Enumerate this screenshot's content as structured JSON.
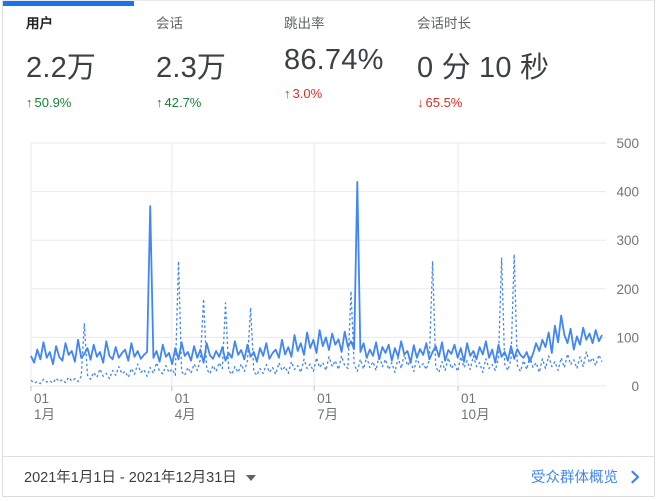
{
  "metrics": [
    {
      "label": "用户",
      "value": "2.2万",
      "arrow_glyph": "↑",
      "delta": "50.9%",
      "delta_color": "#188038",
      "active": true
    },
    {
      "label": "会话",
      "value": "2.3万",
      "arrow_glyph": "↑",
      "delta": "42.7%",
      "delta_color": "#188038",
      "active": false
    },
    {
      "label": "跳出率",
      "value": "86.74%",
      "arrow_glyph": "↑",
      "delta": "3.0%",
      "delta_color": "#d93025",
      "active": false
    },
    {
      "label": "会话时长",
      "value": "0 分 10 秒",
      "arrow_glyph": "↓",
      "delta": "65.5%",
      "delta_color": "#d93025",
      "active": false
    }
  ],
  "chart_data": {
    "type": "line",
    "title": "",
    "xlabel": "",
    "ylabel": "",
    "ylim": [
      0,
      500
    ],
    "y_ticks": [
      0,
      100,
      200,
      300,
      400,
      500
    ],
    "y_axis_side": "right",
    "grid": true,
    "legend": "none",
    "x_ticks": [
      {
        "frac": 0.0,
        "label_line1": "01",
        "label_line2": "1月"
      },
      {
        "frac": 0.2466,
        "label_line1": "01",
        "label_line2": "4月"
      },
      {
        "frac": 0.4959,
        "label_line1": "01",
        "label_line2": "7月"
      },
      {
        "frac": 0.7479,
        "label_line1": "01",
        "label_line2": "10月"
      }
    ],
    "series": [
      {
        "name": "previous-period",
        "style": "dashed",
        "color": "#4285f4",
        "values": [
          12,
          6,
          9,
          5,
          14,
          8,
          11,
          6,
          16,
          9,
          13,
          7,
          18,
          10,
          15,
          9,
          20,
          128,
          22,
          14,
          28,
          18,
          35,
          20,
          26,
          15,
          32,
          22,
          40,
          25,
          30,
          18,
          36,
          24,
          45,
          28,
          34,
          20,
          38,
          26,
          48,
          30,
          25,
          42,
          28,
          35,
          22,
          257,
          30,
          22,
          38,
          26,
          45,
          32,
          55,
          179,
          35,
          25,
          42,
          30,
          48,
          36,
          171,
          32,
          24,
          40,
          28,
          45,
          30,
          52,
          161,
          30,
          22,
          36,
          26,
          44,
          28,
          38,
          24,
          48,
          32,
          40,
          26,
          50,
          34,
          42,
          28,
          55,
          36,
          45,
          30,
          58,
          38,
          48,
          32,
          60,
          40,
          52,
          34,
          62,
          42,
          36,
          195,
          45,
          30,
          55,
          35,
          60,
          38,
          50,
          32,
          64,
          40,
          55,
          34,
          48,
          28,
          58,
          36,
          65,
          42,
          52,
          30,
          60,
          38,
          46,
          34,
          55,
          257,
          40,
          28,
          50,
          32,
          58,
          36,
          46,
          30,
          60,
          38,
          52,
          34,
          62,
          40,
          48,
          28,
          56,
          36,
          44,
          32,
          58,
          263,
          45,
          32,
          55,
          271,
          42,
          30,
          52,
          34,
          60,
          38,
          48,
          28,
          56,
          36,
          62,
          40,
          50,
          32,
          58,
          38,
          66,
          44,
          54,
          36,
          60,
          40,
          70,
          48,
          58,
          42,
          64,
          50
        ]
      },
      {
        "name": "current-period",
        "style": "solid",
        "color": "#4285f4",
        "values": [
          62,
          48,
          75,
          55,
          90,
          58,
          70,
          45,
          82,
          60,
          52,
          88,
          64,
          72,
          50,
          95,
          58,
          66,
          78,
          54,
          85,
          60,
          70,
          48,
          92,
          62,
          55,
          80,
          58,
          68,
          75,
          52,
          88,
          60,
          72,
          56,
          64,
          70,
          370,
          58,
          72,
          50,
          85,
          60,
          68,
          45,
          78,
          55,
          90,
          62,
          70,
          52,
          82,
          58,
          75,
          48,
          88,
          64,
          56,
          72,
          60,
          80,
          52,
          68,
          58,
          92,
          64,
          74,
          55,
          85,
          60,
          70,
          50,
          78,
          62,
          88,
          56,
          68,
          75,
          58,
          95,
          65,
          80,
          60,
          105,
          72,
          88,
          64,
          110,
          78,
          95,
          68,
          115,
          82,
          100,
          74,
          108,
          85,
          96,
          70,
          112,
          80,
          92,
          76,
          420,
          70,
          88,
          58,
          75,
          62,
          90,
          55,
          80,
          68,
          85,
          52,
          78,
          60,
          92,
          65,
          72,
          48,
          84,
          58,
          76,
          64,
          88,
          55,
          70,
          82,
          60,
          90,
          52,
          74,
          66,
          85,
          58,
          78,
          50,
          88,
          62,
          72,
          55,
          80,
          65,
          92,
          58,
          75,
          48,
          85,
          60,
          70,
          52,
          82,
          56,
          76,
          64,
          58,
          70,
          50,
          66,
          88,
          72,
          95,
          80,
          110,
          68,
          124,
          90,
          145,
          105,
          88,
          118,
          75,
          102,
          85,
          120,
          95,
          108,
          88,
          115,
          92,
          105
        ]
      }
    ]
  },
  "footer": {
    "date_range": "2021年1月1日 - 2021年12月31日",
    "link_label": "受众群体概览",
    "link_color": "#4285f4"
  },
  "colors": {
    "indicator": "#1a73e8",
    "line": "#4285f4",
    "grid": "#e8eaed",
    "tick": "#bdc1c6",
    "axis_text": "#70757a"
  }
}
